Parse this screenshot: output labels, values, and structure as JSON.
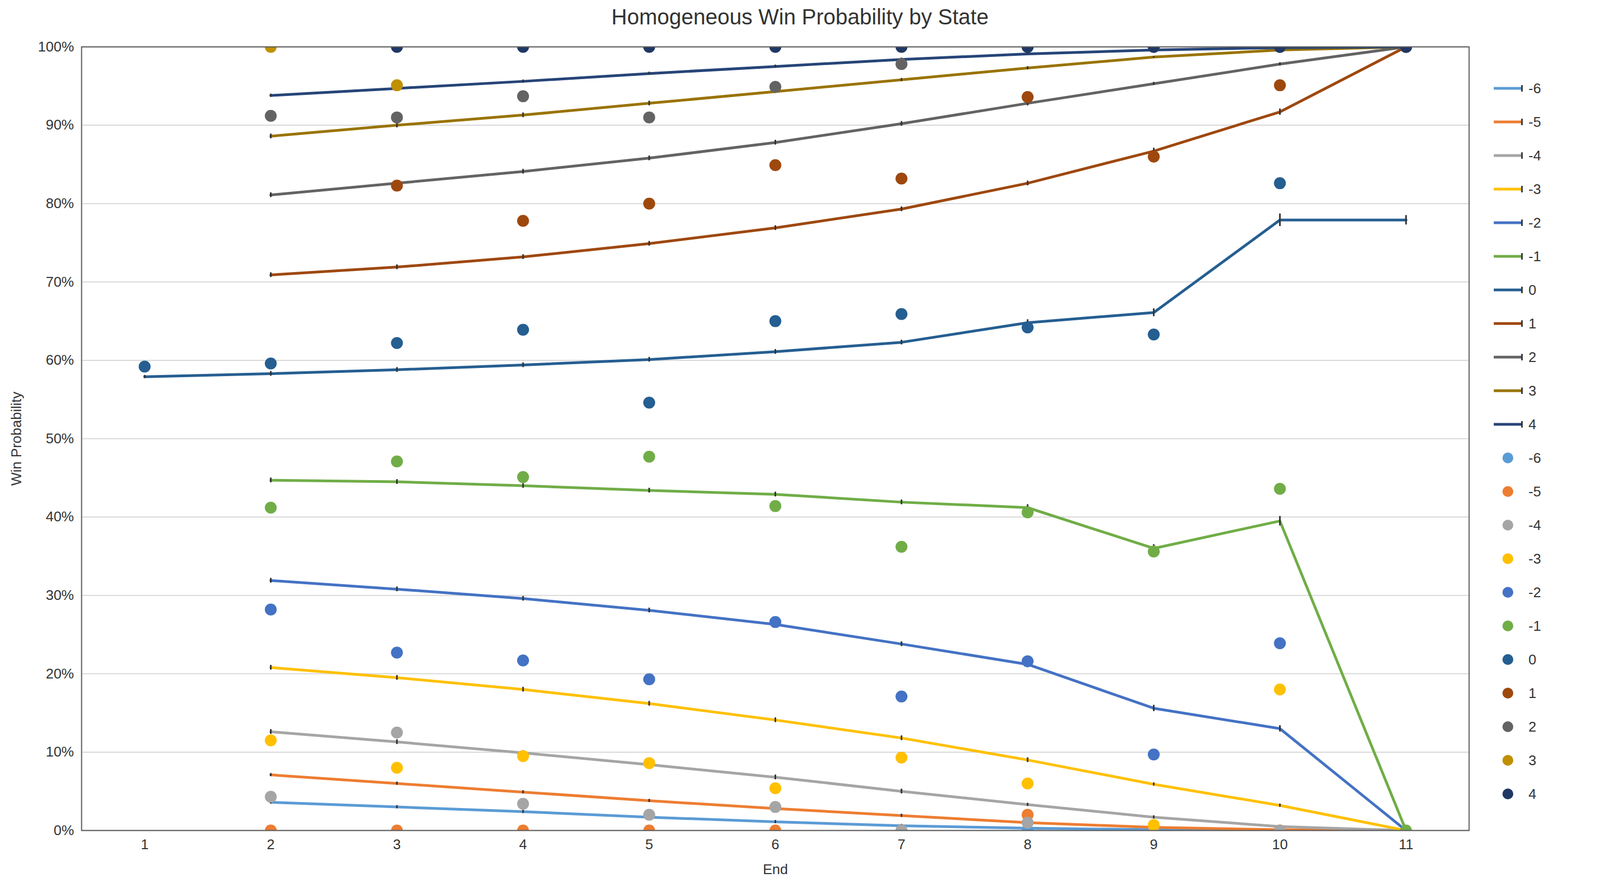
{
  "chart_data": {
    "type": "line",
    "title": "Homogeneous Win Probability by State",
    "x_label": "End",
    "y_label": "Win Probability",
    "x": [
      1,
      2,
      3,
      4,
      5,
      6,
      7,
      8,
      9,
      10,
      11
    ],
    "xlim": [
      0.5,
      11.5
    ],
    "xticks": [
      1,
      2,
      3,
      4,
      5,
      6,
      7,
      8,
      9,
      10,
      11
    ],
    "ylim": [
      0,
      100
    ],
    "yticks": [
      {
        "value": 0,
        "label": "0%"
      },
      {
        "value": 10,
        "label": "10%"
      },
      {
        "value": 20,
        "label": "20%"
      },
      {
        "value": 30,
        "label": "30%"
      },
      {
        "value": 40,
        "label": "40%"
      },
      {
        "value": 50,
        "label": "50%"
      },
      {
        "value": 60,
        "label": "60%"
      },
      {
        "value": 70,
        "label": "70%"
      },
      {
        "value": 80,
        "label": "80%"
      },
      {
        "value": 90,
        "label": "90%"
      },
      {
        "value": 100,
        "label": "100%"
      }
    ],
    "grid": true,
    "legend": "right",
    "series": [
      {
        "name": "-6",
        "type": "line",
        "line_style": "solid",
        "color": "#5b9bd5",
        "values": [
          null,
          3.6,
          3.0,
          2.4,
          1.7,
          1.1,
          0.6,
          0.3,
          0.1,
          0.0,
          0
        ],
        "errors": [
          null,
          0.2,
          0.2,
          0.2,
          0.2,
          0.2,
          0.2,
          0.2,
          0.1,
          0.1,
          null
        ]
      },
      {
        "name": "-5",
        "type": "line",
        "line_style": "solid",
        "color": "#ed7d31",
        "values": [
          null,
          7.1,
          6.0,
          4.9,
          3.8,
          2.8,
          1.9,
          1.0,
          0.4,
          0.1,
          0
        ],
        "errors": [
          null,
          0.2,
          0.2,
          0.2,
          0.2,
          0.2,
          0.2,
          0.2,
          0.1,
          0.1,
          null
        ]
      },
      {
        "name": "-4",
        "type": "line",
        "line_style": "solid",
        "color": "#a5a5a5",
        "values": [
          null,
          12.6,
          11.3,
          9.9,
          8.4,
          6.8,
          5.0,
          3.3,
          1.7,
          0.5,
          0
        ],
        "errors": [
          null,
          0.3,
          0.3,
          0.3,
          0.3,
          0.3,
          0.3,
          0.2,
          0.2,
          0.1,
          null
        ]
      },
      {
        "name": "-3",
        "type": "line",
        "line_style": "solid",
        "color": "#ffc000",
        "values": [
          null,
          20.8,
          19.5,
          18.0,
          16.2,
          14.1,
          11.8,
          9.0,
          5.9,
          3.2,
          0
        ],
        "errors": [
          null,
          0.3,
          0.3,
          0.3,
          0.3,
          0.3,
          0.3,
          0.3,
          0.2,
          0.2,
          null
        ]
      },
      {
        "name": "-2",
        "type": "line",
        "line_style": "solid",
        "color": "#4472c4",
        "values": [
          null,
          31.9,
          30.8,
          29.6,
          28.1,
          26.3,
          23.8,
          21.2,
          15.6,
          13.0,
          0
        ],
        "errors": [
          null,
          0.3,
          0.3,
          0.3,
          0.3,
          0.3,
          0.3,
          0.4,
          0.4,
          0.4,
          null
        ]
      },
      {
        "name": "-1",
        "type": "line",
        "line_style": "solid",
        "color": "#70ad47",
        "values": [
          null,
          44.7,
          44.5,
          44.0,
          43.4,
          42.9,
          41.9,
          41.2,
          36.0,
          39.5,
          0
        ],
        "errors": [
          null,
          0.3,
          0.3,
          0.3,
          0.3,
          0.3,
          0.3,
          0.4,
          0.5,
          0.6,
          null
        ]
      },
      {
        "name": "0",
        "type": "line",
        "line_style": "solid",
        "color": "#255e91",
        "values": [
          57.9,
          58.3,
          58.8,
          59.4,
          60.1,
          61.1,
          62.3,
          64.8,
          66.1,
          77.9,
          77.9
        ],
        "errors": [
          0.2,
          0.3,
          0.3,
          0.3,
          0.3,
          0.3,
          0.3,
          0.4,
          0.5,
          0.8,
          0.6
        ]
      },
      {
        "name": "1",
        "type": "line",
        "line_style": "solid",
        "color": "#9e480e",
        "values": [
          null,
          70.9,
          71.9,
          73.2,
          74.9,
          76.9,
          79.3,
          82.6,
          86.7,
          91.7,
          100
        ],
        "errors": [
          null,
          0.3,
          0.3,
          0.3,
          0.3,
          0.3,
          0.3,
          0.3,
          0.4,
          0.4,
          null
        ]
      },
      {
        "name": "2",
        "type": "line",
        "line_style": "solid",
        "color": "#636363",
        "values": [
          null,
          81.1,
          82.6,
          84.1,
          85.8,
          87.8,
          90.2,
          92.8,
          95.3,
          97.8,
          100
        ],
        "errors": [
          null,
          0.3,
          0.3,
          0.3,
          0.3,
          0.3,
          0.3,
          0.3,
          0.2,
          0.2,
          null
        ]
      },
      {
        "name": "3",
        "type": "line",
        "line_style": "solid",
        "color": "#997300",
        "values": [
          null,
          88.6,
          90.0,
          91.3,
          92.8,
          94.3,
          95.8,
          97.3,
          98.7,
          99.6,
          100
        ],
        "errors": [
          null,
          0.3,
          0.3,
          0.3,
          0.3,
          0.2,
          0.2,
          0.2,
          0.1,
          0.1,
          null
        ]
      },
      {
        "name": "4",
        "type": "line",
        "line_style": "solid",
        "color": "#264478",
        "values": [
          null,
          93.8,
          94.7,
          95.6,
          96.6,
          97.5,
          98.4,
          99.1,
          99.6,
          99.9,
          100
        ],
        "errors": [
          null,
          0.2,
          0.2,
          0.2,
          0.2,
          0.2,
          0.2,
          0.1,
          0.1,
          0.1,
          null
        ]
      },
      {
        "name": "-6",
        "type": "scatter",
        "marker": "circle",
        "color": "#5b9bd5",
        "values": [
          null,
          null,
          null,
          null,
          null,
          null,
          null,
          0,
          null,
          null,
          null
        ]
      },
      {
        "name": "-5",
        "type": "scatter",
        "marker": "circle",
        "color": "#ed7d31",
        "values": [
          null,
          0,
          0,
          0,
          0,
          0,
          0,
          2.0,
          0,
          0,
          null
        ]
      },
      {
        "name": "-4",
        "type": "scatter",
        "marker": "circle",
        "color": "#a5a5a5",
        "values": [
          null,
          4.3,
          12.5,
          3.4,
          2.0,
          3.0,
          0,
          1.0,
          0,
          0,
          null
        ]
      },
      {
        "name": "-3",
        "type": "scatter",
        "marker": "circle",
        "color": "#ffc000",
        "values": [
          null,
          11.5,
          8.0,
          9.5,
          8.6,
          5.4,
          9.3,
          6.0,
          0.7,
          18.0,
          null
        ]
      },
      {
        "name": "-2",
        "type": "scatter",
        "marker": "circle",
        "color": "#4472c4",
        "values": [
          null,
          28.2,
          22.7,
          21.7,
          19.3,
          26.6,
          17.1,
          21.6,
          9.7,
          23.9,
          null
        ]
      },
      {
        "name": "-1",
        "type": "scatter",
        "marker": "circle",
        "color": "#70ad47",
        "values": [
          null,
          41.2,
          47.1,
          45.1,
          47.7,
          41.4,
          36.2,
          40.6,
          35.6,
          43.6,
          0
        ]
      },
      {
        "name": "0",
        "type": "scatter",
        "marker": "circle",
        "color": "#255e91",
        "values": [
          59.2,
          59.6,
          62.2,
          63.9,
          54.6,
          65.0,
          65.9,
          64.2,
          63.3,
          82.6,
          null
        ]
      },
      {
        "name": "1",
        "type": "scatter",
        "marker": "circle",
        "color": "#9e480e",
        "values": [
          null,
          null,
          82.3,
          77.8,
          80.0,
          84.9,
          83.2,
          93.6,
          86.0,
          95.1,
          100
        ]
      },
      {
        "name": "2",
        "type": "scatter",
        "marker": "circle",
        "color": "#636363",
        "values": [
          null,
          91.2,
          91.0,
          93.7,
          91.0,
          94.9,
          97.8,
          100,
          100,
          100,
          100
        ]
      },
      {
        "name": "3",
        "type": "scatter",
        "marker": "circle",
        "color": "#bf9000",
        "values": [
          null,
          100,
          95.1,
          null,
          null,
          null,
          null,
          null,
          null,
          null,
          null
        ]
      },
      {
        "name": "4",
        "type": "scatter",
        "marker": "circle",
        "color": "#203864",
        "values": [
          null,
          null,
          100,
          100,
          100,
          100,
          100,
          100,
          100,
          100,
          100
        ]
      }
    ]
  }
}
